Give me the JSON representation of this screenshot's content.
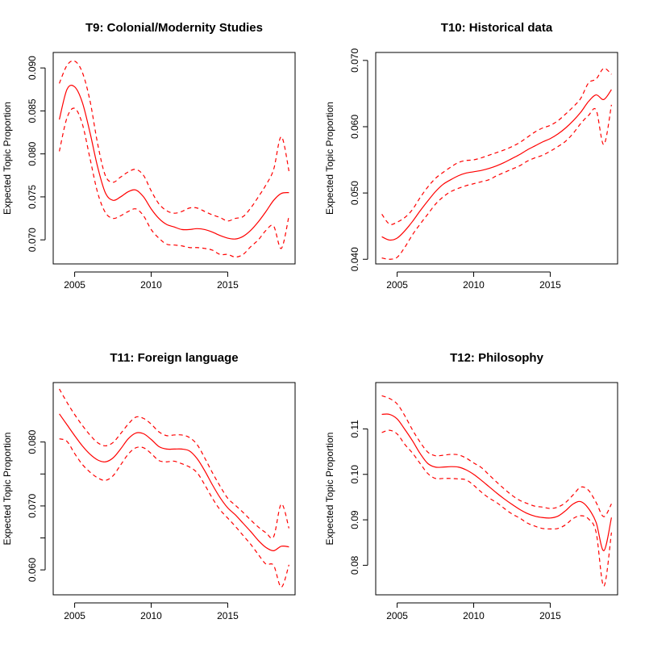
{
  "colors": {
    "line": "#ff0000",
    "axis": "#000000",
    "background": "#ffffff"
  },
  "chart_data": [
    {
      "type": "line",
      "title": "T9: Colonial/Modernity Studies",
      "ylabel": "Expected Topic Proportion",
      "xlabel": "",
      "xlim": [
        2003.6,
        2019.4
      ],
      "ylim": [
        0.0672,
        0.0918
      ],
      "xticks": [
        2005,
        2010,
        2015
      ],
      "xtick_labels": [
        "2005",
        "2010",
        "2015"
      ],
      "yticks": [
        0.07,
        0.075,
        0.08,
        0.085,
        0.09
      ],
      "ytick_labels": [
        "0.070",
        "0.075",
        "0.080",
        "0.085",
        "0.090"
      ],
      "x": [
        2004,
        2004.5,
        2005,
        2005.5,
        2006,
        2006.5,
        2007,
        2007.5,
        2008,
        2008.5,
        2009,
        2009.5,
        2010,
        2010.5,
        2011,
        2011.5,
        2012,
        2012.5,
        2013,
        2013.5,
        2014,
        2014.5,
        2015,
        2015.5,
        2016,
        2016.5,
        2017,
        2017.5,
        2018,
        2018.5,
        2019
      ],
      "series": [
        {
          "values": [
            0.084,
            0.0875,
            0.0878,
            0.086,
            0.0825,
            0.0785,
            0.0755,
            0.0746,
            0.075,
            0.0756,
            0.0758,
            0.075,
            0.0736,
            0.0725,
            0.0718,
            0.0715,
            0.0712,
            0.0712,
            0.0713,
            0.0712,
            0.0709,
            0.0705,
            0.0702,
            0.0701,
            0.0704,
            0.0711,
            0.0721,
            0.0733,
            0.0746,
            0.0754,
            0.0755
          ],
          "style": "solid"
        },
        {
          "values": [
            0.0882,
            0.0903,
            0.0908,
            0.0895,
            0.0862,
            0.0812,
            0.0775,
            0.0767,
            0.0773,
            0.0779,
            0.0782,
            0.0775,
            0.0757,
            0.0742,
            0.0734,
            0.0731,
            0.0733,
            0.0737,
            0.0737,
            0.0733,
            0.0729,
            0.0726,
            0.0722,
            0.0725,
            0.0727,
            0.0737,
            0.075,
            0.0764,
            0.0782,
            0.082,
            0.078
          ],
          "style": "dashed"
        },
        {
          "values": [
            0.0803,
            0.0842,
            0.0853,
            0.0835,
            0.0795,
            0.0755,
            0.0732,
            0.0725,
            0.0728,
            0.0733,
            0.0736,
            0.0728,
            0.0712,
            0.0702,
            0.0695,
            0.0694,
            0.0693,
            0.0691,
            0.0691,
            0.069,
            0.0688,
            0.0683,
            0.0683,
            0.068,
            0.0683,
            0.0692,
            0.07,
            0.0711,
            0.0716,
            0.069,
            0.0728
          ],
          "style": "dashed"
        }
      ]
    },
    {
      "type": "line",
      "title": "T10: Historical data",
      "ylabel": "Expected Topic Proportion",
      "xlabel": "",
      "xlim": [
        2003.6,
        2019.4
      ],
      "ylim": [
        0.0393,
        0.0712
      ],
      "xticks": [
        2005,
        2010,
        2015
      ],
      "xtick_labels": [
        "2005",
        "2010",
        "2015"
      ],
      "yticks": [
        0.04,
        0.05,
        0.06,
        0.07
      ],
      "ytick_labels": [
        "0.040",
        "0.050",
        "0.060",
        "0.070"
      ],
      "x": [
        2004,
        2004.5,
        2005,
        2005.5,
        2006,
        2006.5,
        2007,
        2007.5,
        2008,
        2008.5,
        2009,
        2009.5,
        2010,
        2010.5,
        2011,
        2011.5,
        2012,
        2012.5,
        2013,
        2013.5,
        2014,
        2014.5,
        2015,
        2015.5,
        2016,
        2016.5,
        2017,
        2017.5,
        2018,
        2018.5,
        2019
      ],
      "series": [
        {
          "values": [
            0.0434,
            0.0429,
            0.0432,
            0.0443,
            0.0457,
            0.0473,
            0.0488,
            0.0502,
            0.0513,
            0.052,
            0.0526,
            0.053,
            0.0532,
            0.0534,
            0.0537,
            0.0541,
            0.0546,
            0.0552,
            0.0558,
            0.0565,
            0.0571,
            0.0577,
            0.0582,
            0.0589,
            0.0598,
            0.0609,
            0.0622,
            0.0638,
            0.0648,
            0.0641,
            0.0656
          ],
          "style": "solid"
        },
        {
          "values": [
            0.0468,
            0.0453,
            0.0456,
            0.0463,
            0.0475,
            0.0493,
            0.0509,
            0.0522,
            0.0531,
            0.0539,
            0.0546,
            0.0549,
            0.055,
            0.0553,
            0.0557,
            0.0561,
            0.0565,
            0.057,
            0.0576,
            0.0584,
            0.0592,
            0.0598,
            0.0602,
            0.0609,
            0.0619,
            0.063,
            0.0643,
            0.0666,
            0.0672,
            0.0688,
            0.0679
          ],
          "style": "dashed"
        },
        {
          "values": [
            0.0402,
            0.04,
            0.0403,
            0.0418,
            0.0437,
            0.0453,
            0.0468,
            0.0483,
            0.0494,
            0.0502,
            0.0507,
            0.0511,
            0.0514,
            0.0517,
            0.052,
            0.0526,
            0.0531,
            0.0536,
            0.0541,
            0.0548,
            0.0553,
            0.0557,
            0.0563,
            0.057,
            0.0578,
            0.059,
            0.0605,
            0.0617,
            0.0625,
            0.0573,
            0.0633
          ],
          "style": "dashed"
        }
      ]
    },
    {
      "type": "line",
      "title": "T11: Foreign language",
      "ylabel": "Expected Topic Proportion",
      "xlabel": "",
      "xlim": [
        2003.6,
        2019.4
      ],
      "ylim": [
        0.0561,
        0.0893
      ],
      "xticks": [
        2005,
        2010,
        2015
      ],
      "xtick_labels": [
        "2005",
        "2010",
        "2015"
      ],
      "yticks": [
        0.06,
        0.065,
        0.07,
        0.075,
        0.08
      ],
      "ytick_labels": [
        "0.060",
        "",
        "0.070",
        "",
        "0.080"
      ],
      "x": [
        2004,
        2004.5,
        2005,
        2005.5,
        2006,
        2006.5,
        2007,
        2007.5,
        2008,
        2008.5,
        2009,
        2009.5,
        2010,
        2010.5,
        2011,
        2011.5,
        2012,
        2012.5,
        2013,
        2013.5,
        2014,
        2014.5,
        2015,
        2015.5,
        2016,
        2016.5,
        2017,
        2017.5,
        2018,
        2018.5,
        2019
      ],
      "series": [
        {
          "values": [
            0.0844,
            0.0827,
            0.081,
            0.0794,
            0.0781,
            0.0772,
            0.0769,
            0.0775,
            0.0789,
            0.0805,
            0.0814,
            0.0813,
            0.0804,
            0.0793,
            0.0789,
            0.0789,
            0.0789,
            0.0786,
            0.0774,
            0.0755,
            0.0733,
            0.0713,
            0.0697,
            0.0686,
            0.0673,
            0.066,
            0.0646,
            0.0635,
            0.063,
            0.0637,
            0.0636
          ],
          "style": "solid"
        },
        {
          "values": [
            0.0883,
            0.0862,
            0.0843,
            0.0826,
            0.0811,
            0.0799,
            0.0794,
            0.0799,
            0.0813,
            0.0828,
            0.0839,
            0.0837,
            0.0828,
            0.0816,
            0.081,
            0.0811,
            0.0811,
            0.0807,
            0.0796,
            0.0775,
            0.0752,
            0.0731,
            0.0712,
            0.0701,
            0.069,
            0.0678,
            0.0667,
            0.0658,
            0.0652,
            0.0703,
            0.0665
          ],
          "style": "dashed"
        },
        {
          "values": [
            0.0805,
            0.0801,
            0.0782,
            0.0765,
            0.0753,
            0.0744,
            0.074,
            0.0747,
            0.0764,
            0.0781,
            0.0791,
            0.0791,
            0.0782,
            0.0771,
            0.0769,
            0.077,
            0.0766,
            0.0761,
            0.0752,
            0.0733,
            0.0712,
            0.0694,
            0.0681,
            0.0668,
            0.0654,
            0.064,
            0.0624,
            0.0609,
            0.0607,
            0.0573,
            0.0608
          ],
          "style": "dashed"
        }
      ]
    },
    {
      "type": "line",
      "title": "T12: Philosophy",
      "ylabel": "Expected Topic Proportion",
      "xlabel": "",
      "xlim": [
        2003.6,
        2019.4
      ],
      "ylim": [
        0.0735,
        0.1202
      ],
      "xticks": [
        2005,
        2010,
        2015
      ],
      "xtick_labels": [
        "2005",
        "2010",
        "2015"
      ],
      "yticks": [
        0.08,
        0.09,
        0.1,
        0.11
      ],
      "ytick_labels": [
        "0.08",
        "0.09",
        "0.10",
        "0.11"
      ],
      "x": [
        2004,
        2004.5,
        2005,
        2005.5,
        2006,
        2006.5,
        2007,
        2007.5,
        2008,
        2008.5,
        2009,
        2009.5,
        2010,
        2010.5,
        2011,
        2011.5,
        2012,
        2012.5,
        2013,
        2013.5,
        2014,
        2014.5,
        2015,
        2015.5,
        2016,
        2016.5,
        2017,
        2017.5,
        2018,
        2018.5,
        2019
      ],
      "series": [
        {
          "values": [
            0.1132,
            0.1132,
            0.1122,
            0.1099,
            0.1074,
            0.1046,
            0.1024,
            0.1016,
            0.1016,
            0.1017,
            0.1016,
            0.101,
            0.1,
            0.0987,
            0.0973,
            0.0959,
            0.0946,
            0.0934,
            0.0923,
            0.0914,
            0.0908,
            0.0905,
            0.0904,
            0.0908,
            0.092,
            0.0935,
            0.094,
            0.0925,
            0.0894,
            0.0832,
            0.0905
          ],
          "style": "solid"
        },
        {
          "values": [
            0.1173,
            0.1167,
            0.1155,
            0.1129,
            0.1098,
            0.1071,
            0.1049,
            0.1041,
            0.1042,
            0.1044,
            0.1043,
            0.1036,
            0.1025,
            0.1015,
            0.0999,
            0.0983,
            0.0968,
            0.0954,
            0.0943,
            0.0936,
            0.093,
            0.0928,
            0.0925,
            0.0928,
            0.0938,
            0.0955,
            0.0972,
            0.0965,
            0.0938,
            0.0907,
            0.0935
          ],
          "style": "dashed"
        },
        {
          "values": [
            0.1092,
            0.1097,
            0.1089,
            0.1066,
            0.1047,
            0.1024,
            0.1002,
            0.0991,
            0.0991,
            0.0991,
            0.099,
            0.0988,
            0.0976,
            0.0961,
            0.0948,
            0.0938,
            0.0925,
            0.0913,
            0.0904,
            0.0893,
            0.0886,
            0.0881,
            0.088,
            0.0881,
            0.0889,
            0.0903,
            0.0909,
            0.0902,
            0.0872,
            0.0754,
            0.0872
          ],
          "style": "dashed"
        }
      ]
    }
  ]
}
